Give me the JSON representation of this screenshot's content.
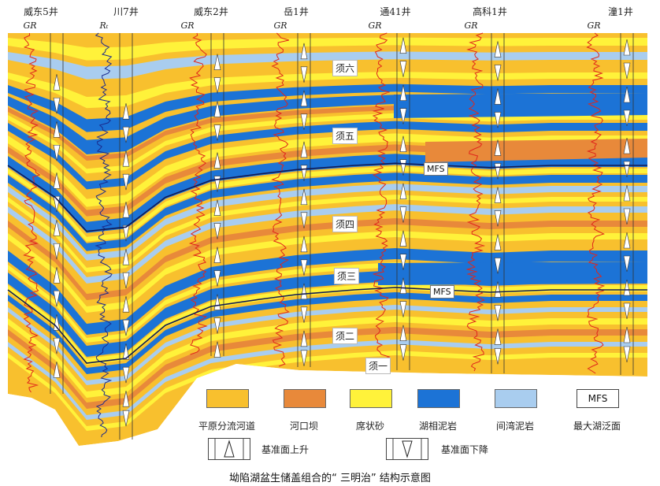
{
  "wells": [
    {
      "name": "威东5井",
      "log": "GR"
    },
    {
      "name": "川7井",
      "log": "Rₜ"
    },
    {
      "name": "威东2井",
      "log": "GR"
    },
    {
      "name": "岳1井",
      "log": "GR"
    },
    {
      "name": "通41井",
      "log": "GR"
    },
    {
      "name": "高科1井",
      "log": "GR"
    },
    {
      "name": "潼1井",
      "log": "GR"
    }
  ],
  "units": {
    "xu6": "须六",
    "xu5": "须五",
    "xu4": "须四",
    "xu3": "须三",
    "xu2": "须二",
    "xu1": "须一"
  },
  "mfs_upper": "MFS",
  "mfs_lower": "MFS",
  "legend": {
    "plain": "平原分流河道",
    "mouth_bar": "河口坝",
    "sheet_sand": "席状砂",
    "lake_mud": "湖相泥岩",
    "bay_mud": "间湾泥岩",
    "mfs_symbol": "MFS",
    "mfs_label": "最大湖泛面",
    "rise": "基准面上升",
    "fall": "基准面下降"
  },
  "colors": {
    "plain": "#F8C02E",
    "mouth_bar": "#E8893A",
    "sheet_sand": "#FFF23A",
    "lake_mud": "#1C73D6",
    "bay_mud": "#A9CDEF",
    "gr_curve": "#E0261B",
    "rt_curve": "#1B2A8C"
  },
  "caption": "坳陷湖盆生储盖组合的“ 三明治”  结构示意图"
}
